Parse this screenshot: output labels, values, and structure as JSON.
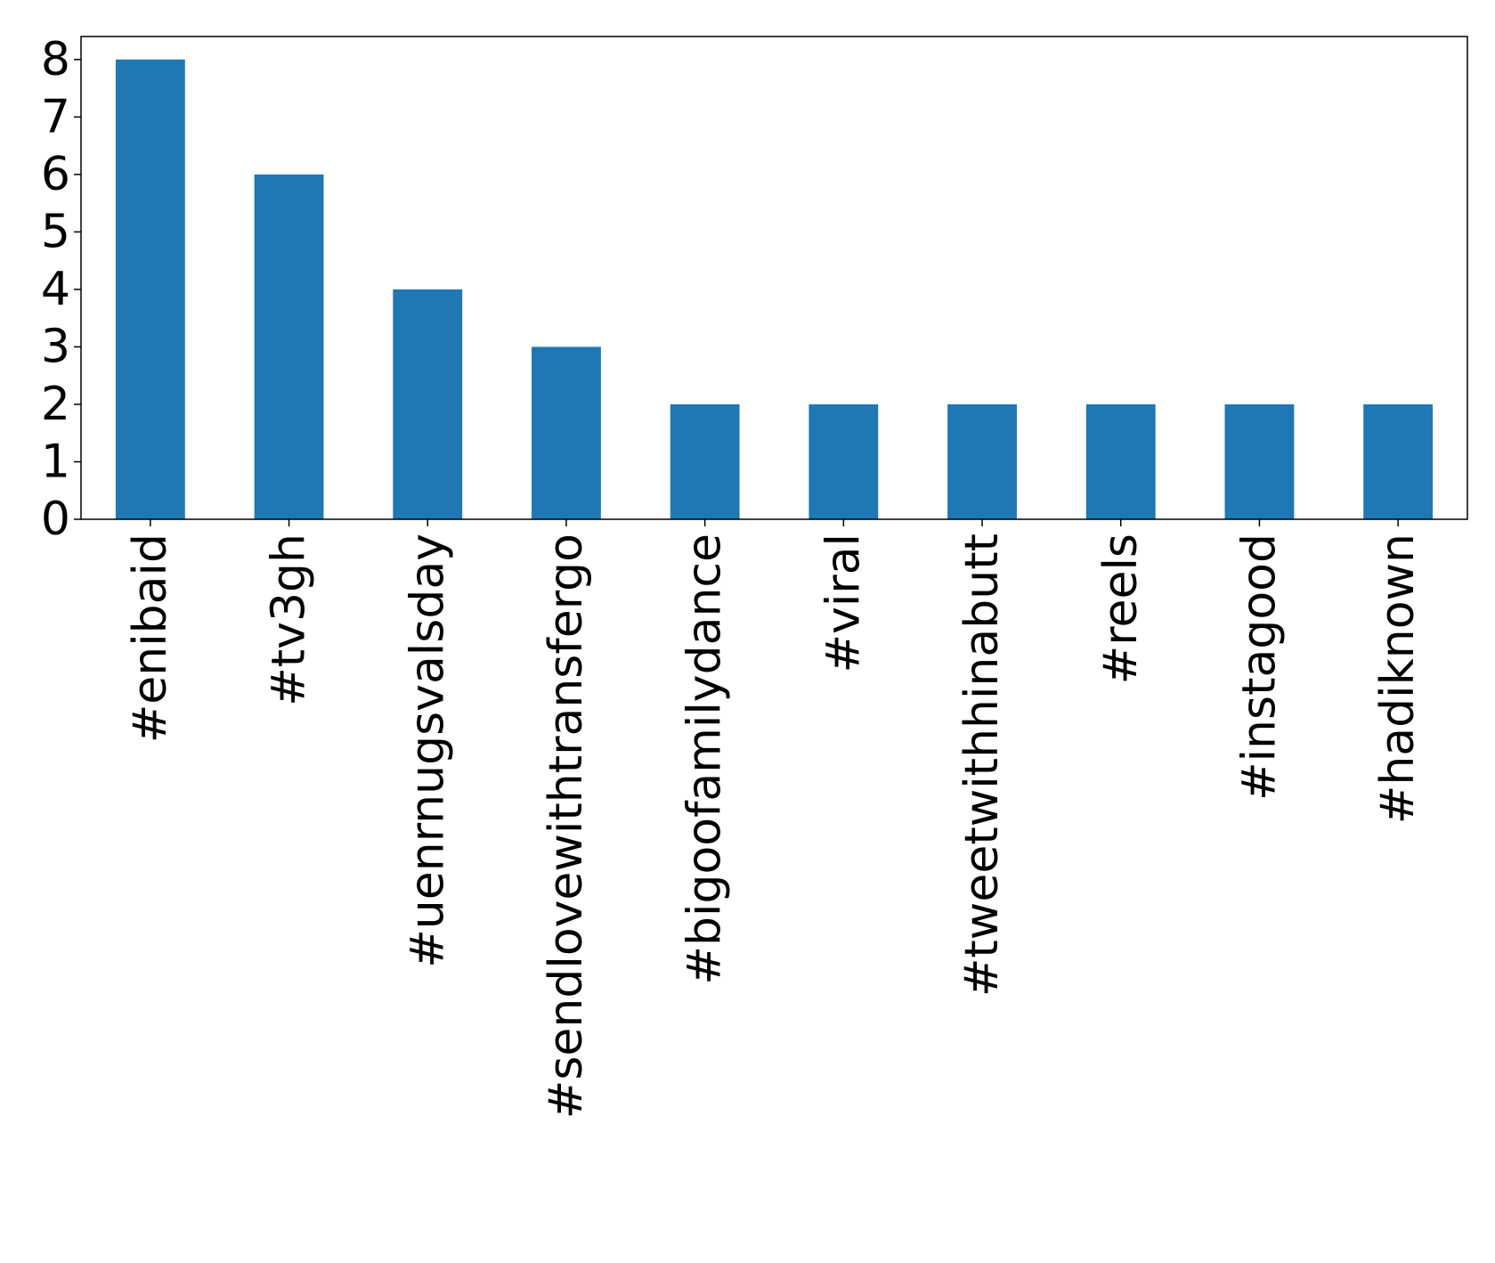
{
  "chart_data": {
    "type": "bar",
    "categories": [
      "#enibaid",
      "#tv3gh",
      "#uenrnugsvalsday",
      "#sendlovewithtransfergo",
      "#bigoofamilydance",
      "#viral",
      "#tweetwithhinabutt",
      "#reels",
      "#instagood",
      "#hadiknown"
    ],
    "values": [
      8,
      6,
      4,
      3,
      2,
      2,
      2,
      2,
      2,
      2
    ],
    "title": "",
    "xlabel": "",
    "ylabel": "",
    "ylim": [
      0,
      8.4
    ],
    "yticks": [
      0,
      1,
      2,
      3,
      4,
      5,
      6,
      7,
      8
    ],
    "bar_color": "#1f77b4",
    "grid": false,
    "legend": "none"
  }
}
